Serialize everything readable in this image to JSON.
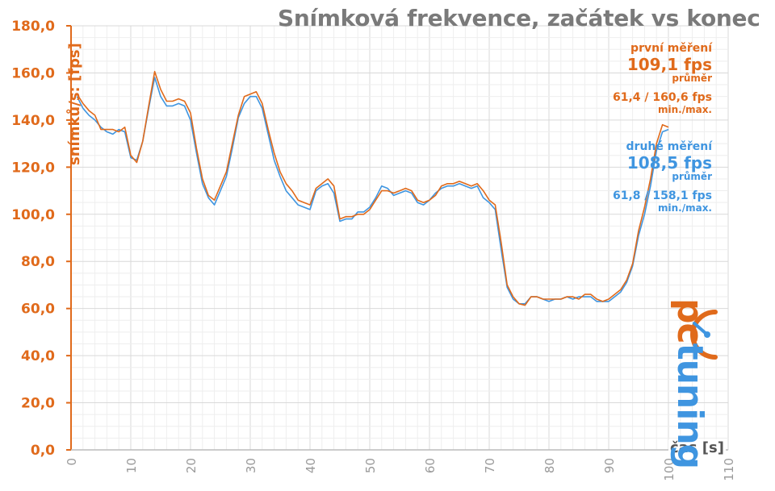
{
  "chart_data": {
    "type": "line",
    "title": "Snímková frekvence, začátek vs konec",
    "ylabel": "snímků/s: [fps]",
    "xlabel": "čas [s]",
    "xlim": [
      0,
      110
    ],
    "ylim": [
      0,
      180
    ],
    "x_ticks": [
      "0",
      "10",
      "20",
      "30",
      "40",
      "50",
      "60",
      "70",
      "80",
      "90",
      "100",
      "110"
    ],
    "y_ticks": [
      "0,0",
      "20,0",
      "40,0",
      "60,0",
      "80,0",
      "100,0",
      "120,0",
      "140,0",
      "160,0",
      "180,0"
    ],
    "grid": true,
    "series": [
      {
        "name": "první měření",
        "color": "#e06a1b",
        "x": [
          1,
          2,
          3,
          4,
          5,
          6,
          7,
          8,
          9,
          10,
          11,
          12,
          13,
          14,
          15,
          16,
          17,
          18,
          19,
          20,
          21,
          22,
          23,
          24,
          25,
          26,
          27,
          28,
          29,
          30,
          31,
          32,
          33,
          34,
          35,
          36,
          37,
          38,
          39,
          40,
          41,
          42,
          43,
          44,
          45,
          46,
          47,
          48,
          49,
          50,
          51,
          52,
          53,
          54,
          55,
          56,
          57,
          58,
          59,
          60,
          61,
          62,
          63,
          64,
          65,
          66,
          67,
          68,
          69,
          70,
          71,
          72,
          73,
          74,
          75,
          76,
          77,
          78,
          79,
          80,
          81,
          82,
          83,
          84,
          85,
          86,
          87,
          88,
          89,
          90,
          91,
          92,
          93,
          94,
          95,
          96,
          97,
          98,
          99,
          100
        ],
        "values": [
          151,
          147,
          144,
          142,
          136,
          136,
          136,
          135,
          137,
          125,
          122,
          131,
          146,
          160.6,
          153,
          148,
          148,
          149,
          148,
          143,
          128,
          115,
          108,
          106,
          112,
          118,
          130,
          142,
          150,
          151,
          152,
          147,
          136,
          126,
          118,
          113,
          110,
          106,
          105,
          104,
          111,
          113,
          115,
          112,
          98,
          99,
          99,
          100,
          100,
          102,
          106,
          110,
          110,
          109,
          110,
          111,
          110,
          106,
          105,
          106,
          108,
          112,
          113,
          113,
          114,
          113,
          112,
          113,
          110,
          106,
          104,
          88,
          70,
          65,
          62,
          61.4,
          65,
          65,
          64,
          64,
          64,
          64,
          65,
          65,
          64,
          66,
          66,
          64,
          63,
          64,
          66,
          68,
          72,
          79,
          93,
          103,
          115,
          130,
          138,
          137
        ],
        "stats": {
          "avg_value": "109,1 fps",
          "avg_label": "průměr",
          "minmax_value": "61,4 / 160,6 fps",
          "minmax_label": "min./max."
        }
      },
      {
        "name": "druhé měření",
        "color": "#3f95e0",
        "x": [
          1,
          2,
          3,
          4,
          5,
          6,
          7,
          8,
          9,
          10,
          11,
          12,
          13,
          14,
          15,
          16,
          17,
          18,
          19,
          20,
          21,
          22,
          23,
          24,
          25,
          26,
          27,
          28,
          29,
          30,
          31,
          32,
          33,
          34,
          35,
          36,
          37,
          38,
          39,
          40,
          41,
          42,
          43,
          44,
          45,
          46,
          47,
          48,
          49,
          50,
          51,
          52,
          53,
          54,
          55,
          56,
          57,
          58,
          59,
          60,
          61,
          62,
          63,
          64,
          65,
          66,
          67,
          68,
          69,
          70,
          71,
          72,
          73,
          74,
          75,
          76,
          77,
          78,
          79,
          80,
          81,
          82,
          83,
          84,
          85,
          86,
          87,
          88,
          89,
          90,
          91,
          92,
          93,
          94,
          95,
          96,
          97,
          98,
          99,
          100
        ],
        "values": [
          150,
          145,
          142,
          140,
          137,
          135,
          134,
          136,
          135,
          124,
          123,
          131,
          145,
          158.1,
          150,
          146,
          146,
          147,
          146,
          140,
          126,
          113,
          107,
          104,
          110,
          116,
          128,
          141,
          147,
          150,
          150,
          145,
          134,
          123,
          116,
          110,
          107,
          104,
          103,
          102,
          110,
          112,
          113,
          109,
          97,
          98,
          98,
          101,
          101,
          103,
          107,
          112,
          111,
          108,
          109,
          110,
          109,
          105,
          104,
          106,
          109,
          111,
          112,
          112,
          113,
          112,
          111,
          112,
          107,
          105,
          102,
          85,
          69,
          64,
          62,
          62,
          65,
          65,
          64,
          63,
          64,
          64,
          65,
          64,
          65,
          65,
          65,
          63,
          63,
          63,
          65,
          67,
          71,
          78,
          91,
          100,
          112,
          127,
          135,
          136
        ],
        "stats": {
          "avg_value": "108,5 fps",
          "avg_label": "průměr",
          "minmax_value": "61,8 / 158,1 fps",
          "minmax_label": "min./max."
        }
      }
    ]
  },
  "logo": {
    "text_part1": "pc",
    "text_part2": "tuning"
  }
}
